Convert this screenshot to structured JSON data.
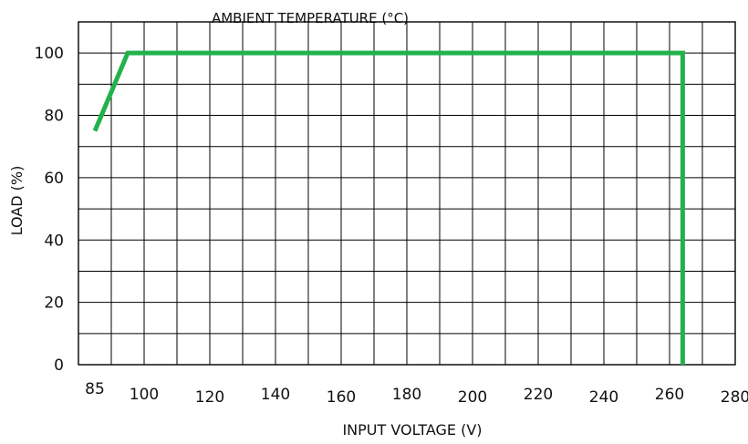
{
  "chart_data": {
    "type": "line",
    "title": "AMBIENT TEMPERATURE (°C)",
    "xlabel": "INPUT VOLTAGE (V)",
    "ylabel": "LOAD (%)",
    "x_ticks": [
      "85",
      "100",
      "120",
      "140",
      "160",
      "180",
      "200",
      "220",
      "240",
      "260",
      "280"
    ],
    "y_ticks": [
      "0",
      "20",
      "40",
      "60",
      "80",
      "100"
    ],
    "xlim": [
      80,
      280
    ],
    "ylim": [
      0,
      110
    ],
    "grid": true,
    "series": [
      {
        "color": "#22b24c",
        "x": [
          85,
          95,
          264,
          264
        ],
        "y": [
          75,
          100,
          100,
          0
        ]
      }
    ]
  }
}
